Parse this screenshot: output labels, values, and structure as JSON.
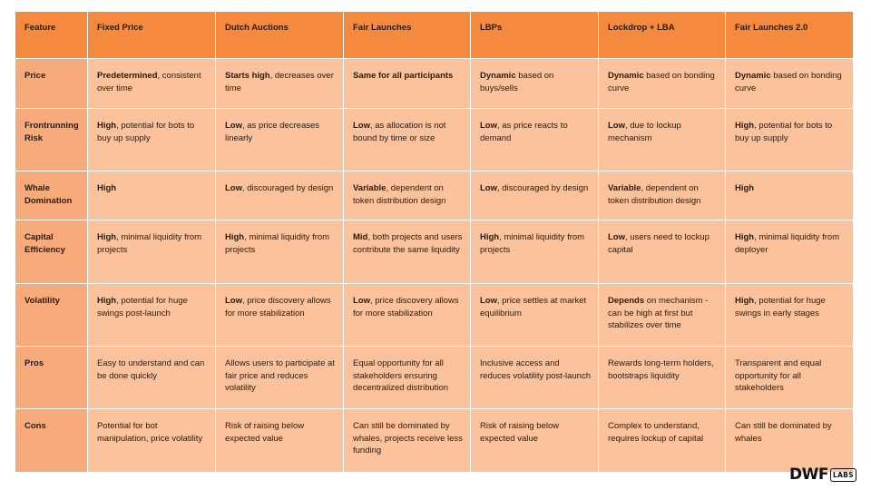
{
  "table": {
    "headers": [
      "Feature",
      "Fixed Price",
      "Dutch Auctions",
      "Fair Launches",
      "LBPs",
      "Lockdrop + LBA",
      "Fair Launches 2.0"
    ],
    "rows": [
      {
        "feature": "Price",
        "cells": [
          {
            "bold": "Predetermined",
            "rest": ", consistent over time"
          },
          {
            "bold": "Starts high",
            "rest": ", decreases over time"
          },
          {
            "bold": "Same for all participants",
            "rest": ""
          },
          {
            "bold": "Dynamic",
            "rest": " based on buys/sells"
          },
          {
            "bold": "Dynamic",
            "rest": " based on bonding curve"
          },
          {
            "bold": "Dynamic",
            "rest": " based on bonding curve"
          }
        ]
      },
      {
        "feature": "Frontrunning Risk",
        "cells": [
          {
            "bold": "High",
            "rest": ", potential for bots to buy up supply"
          },
          {
            "bold": "Low",
            "rest": ", as price decreases linearly"
          },
          {
            "bold": "Low",
            "rest": ", as allocation is not bound by time or size"
          },
          {
            "bold": "Low",
            "rest": ", as price reacts to demand"
          },
          {
            "bold": "Low",
            "rest": ", due to lockup mechanism"
          },
          {
            "bold": "High",
            "rest": ", potential for bots to buy up supply"
          }
        ]
      },
      {
        "feature": "Whale Domination",
        "cells": [
          {
            "bold": "High",
            "rest": ""
          },
          {
            "bold": "Low",
            "rest": ", discouraged by design"
          },
          {
            "bold": "Variable",
            "rest": ", dependent on token distribution design"
          },
          {
            "bold": "Low",
            "rest": ", discouraged by design"
          },
          {
            "bold": "Variable",
            "rest": ", dependent on token distribution design"
          },
          {
            "bold": "High",
            "rest": ""
          }
        ]
      },
      {
        "feature": "Capital Efficiency",
        "cells": [
          {
            "bold": "High",
            "rest": ", minimal liquidity from projects"
          },
          {
            "bold": "High",
            "rest": ", minimal liquidity from projects"
          },
          {
            "bold": "Mid",
            "rest": ", both projects and users contribute the same liquidity"
          },
          {
            "bold": "High",
            "rest": ", minimal liquidity from projects"
          },
          {
            "bold": "Low",
            "rest": ", users need to lockup capital"
          },
          {
            "bold": "High",
            "rest": ", minimal liquidity from deployer"
          }
        ]
      },
      {
        "feature": "Volatility",
        "cells": [
          {
            "bold": "High",
            "rest": ", potential for huge swings post-launch"
          },
          {
            "bold": "Low",
            "rest": ", price discovery allows for more stabilization"
          },
          {
            "bold": "Low",
            "rest": ", price discovery allows for more stabilization"
          },
          {
            "bold": "Low",
            "rest": ", price settles at market equilibrium"
          },
          {
            "bold": "Depends",
            "rest": " on mechanism - can be high at first but stabilizes over time"
          },
          {
            "bold": "High",
            "rest": ", potential for huge swings in early stages"
          }
        ]
      },
      {
        "feature": "Pros",
        "cells": [
          {
            "bold": "",
            "rest": "Easy to understand and can be done quickly"
          },
          {
            "bold": "",
            "rest": "Allows users to participate at fair price and reduces volatility"
          },
          {
            "bold": "",
            "rest": "Equal opportunity for all stakeholders ensuring decentralized distribution"
          },
          {
            "bold": "",
            "rest": "Inclusive access and reduces volatility post-launch"
          },
          {
            "bold": "",
            "rest": "Rewards long-term holders, bootstraps liquidity"
          },
          {
            "bold": "",
            "rest": "Transparent and equal opportunity for all stakeholders"
          }
        ]
      },
      {
        "feature": "Cons",
        "cells": [
          {
            "bold": "",
            "rest": "Potential for bot manipulation, price volatility"
          },
          {
            "bold": "",
            "rest": "Risk of raising below expected value"
          },
          {
            "bold": "",
            "rest": "Can still be dominated by whales, projects receive less funding"
          },
          {
            "bold": "",
            "rest": "Risk of raising below expected value"
          },
          {
            "bold": "",
            "rest": "Complex to understand, requires lockup of capital"
          },
          {
            "bold": "",
            "rest": "Can still be dominated by whales"
          }
        ]
      }
    ]
  },
  "logo": {
    "main": "DWF",
    "badge": "LABS"
  },
  "colors": {
    "header": "#f5893e",
    "first_column": "#f8ab7a",
    "cell": "#fbc29c",
    "text": "#2a1a10"
  }
}
